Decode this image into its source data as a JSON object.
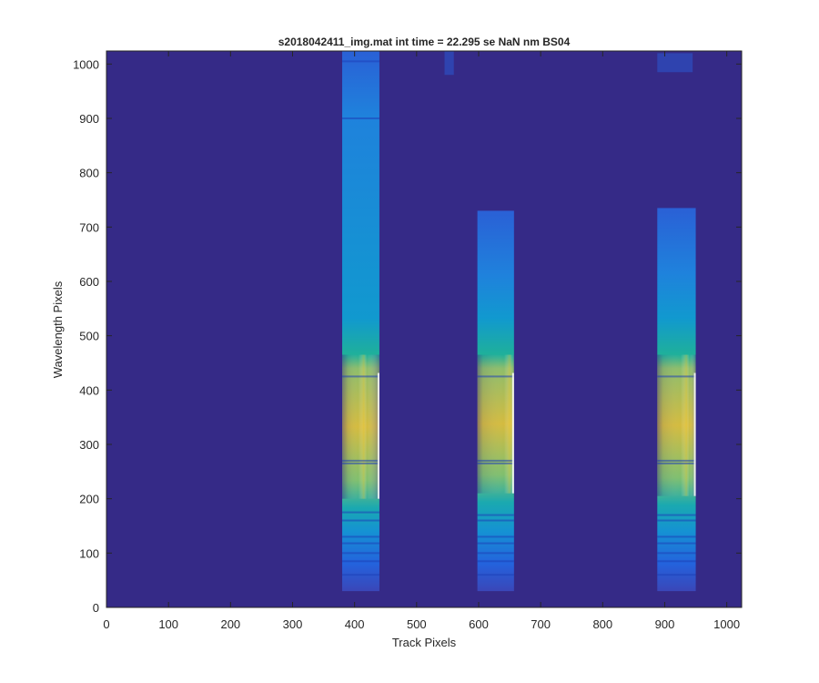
{
  "chart_data": {
    "type": "heatmap",
    "title": "s2018042411_img.mat int time = 22.295 se  NaN nm BS04",
    "xlabel": "Track Pixels",
    "ylabel": "Wavelength Pixels",
    "xlim": [
      0,
      1024
    ],
    "ylim": [
      0,
      1024
    ],
    "xticks": [
      0,
      100,
      200,
      300,
      400,
      500,
      600,
      700,
      800,
      900,
      1000
    ],
    "yticks": [
      0,
      100,
      200,
      300,
      400,
      500,
      600,
      700,
      800,
      900,
      1000
    ],
    "grid": false,
    "colormap": "parula",
    "colors": {
      "background": "#352A87",
      "axis": "#262626"
    },
    "bands": [
      {
        "x_range": [
          380,
          440
        ],
        "y_range": [
          30,
          1024
        ],
        "bright_y_range": [
          200,
          465
        ],
        "peak_x": 415,
        "dark_lines_y": [
          175,
          160,
          130,
          118,
          100,
          85,
          60,
          265,
          270,
          425,
          900,
          1005
        ]
      },
      {
        "x_range": [
          598,
          657
        ],
        "y_range": [
          30,
          730
        ],
        "bright_y_range": [
          210,
          465
        ],
        "peak_x": 650,
        "dark_lines_y": [
          170,
          160,
          130,
          118,
          100,
          85,
          60,
          265,
          270,
          425
        ]
      },
      {
        "x_range": [
          888,
          950
        ],
        "y_range": [
          30,
          735
        ],
        "bright_y_range": [
          205,
          465
        ],
        "peak_x": 935,
        "dark_lines_y": [
          170,
          160,
          130,
          118,
          100,
          85,
          60,
          265,
          270,
          425
        ]
      }
    ],
    "top_artifacts": [
      {
        "x_range": [
          545,
          560
        ],
        "y_range": [
          980,
          1024
        ]
      },
      {
        "x_range": [
          888,
          945
        ],
        "y_range": [
          985,
          1020
        ]
      }
    ]
  }
}
